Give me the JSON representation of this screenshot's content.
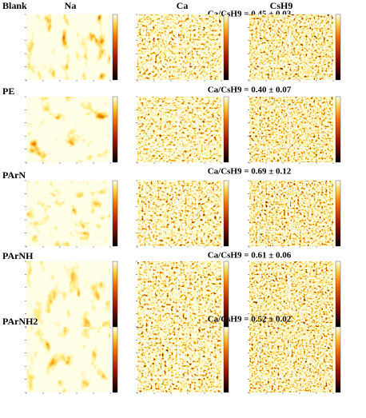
{
  "columns": [
    "Na",
    "Ca",
    "CsH9"
  ],
  "rows": [
    {
      "label": "Blank",
      "ratio": "Ca/CsH9 = 0.45 ± 0.03"
    },
    {
      "label": "PE",
      "ratio": "Ca/CsH9 = 0.40 ± 0.07"
    },
    {
      "label": "PArN",
      "ratio": "Ca/CsH9 = 0.69 ± 0.12"
    },
    {
      "label": "PArNH",
      "ratio": "Ca/CsH9 = 0.61 ± 0.06"
    },
    {
      "label": "PArNH2",
      "ratio": "Ca/CsH9 = 0.52 ± 0.02"
    }
  ]
}
